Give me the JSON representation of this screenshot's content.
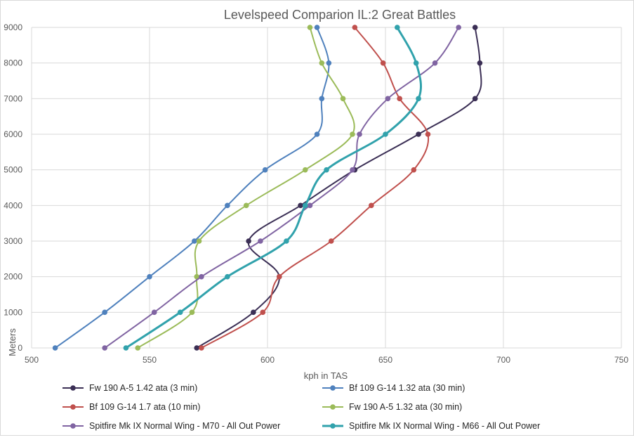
{
  "chart_data": {
    "type": "line",
    "title": "Levelspeed Comparion IL:2 Great Battles",
    "xlabel": "kph in TAS",
    "ylabel": "Meters",
    "xlim": [
      500,
      750
    ],
    "ylim": [
      0,
      9000
    ],
    "xticks": [
      500,
      550,
      600,
      650,
      700,
      750
    ],
    "yticks": [
      0,
      1000,
      2000,
      3000,
      4000,
      5000,
      6000,
      7000,
      8000,
      9000
    ],
    "grid": true,
    "legend_position": "bottom",
    "series": [
      {
        "name": "Fw 190 A-5 1.42 ata (3 min)",
        "color": "#3b2f55",
        "points": [
          [
            570,
            0
          ],
          [
            594,
            1000
          ],
          [
            605,
            2000
          ],
          [
            592,
            3000
          ],
          [
            614,
            4000
          ],
          [
            637,
            5000
          ],
          [
            664,
            6000
          ],
          [
            688,
            7000
          ],
          [
            690,
            8000
          ],
          [
            688,
            9000
          ]
        ]
      },
      {
        "name": "Bf 109 G-14 1.32 ata (30 min)",
        "color": "#4f81bd",
        "points": [
          [
            510,
            0
          ],
          [
            531,
            1000
          ],
          [
            550,
            2000
          ],
          [
            569,
            3000
          ],
          [
            583,
            4000
          ],
          [
            599,
            5000
          ],
          [
            621,
            6000
          ],
          [
            623,
            7000
          ],
          [
            626,
            8000
          ],
          [
            621,
            9000
          ]
        ]
      },
      {
        "name": "Bf 109 G-14 1.7 ata (10 min)",
        "color": "#c0504d",
        "points": [
          [
            572,
            0
          ],
          [
            598,
            1000
          ],
          [
            605,
            2000
          ],
          [
            627,
            3000
          ],
          [
            644,
            4000
          ],
          [
            662,
            5000
          ],
          [
            668,
            6000
          ],
          [
            656,
            7000
          ],
          [
            649,
            8000
          ],
          [
            637,
            9000
          ]
        ]
      },
      {
        "name": "Fw 190 A-5 1.32 ata (30 min)",
        "color": "#9bbb59",
        "points": [
          [
            545,
            0
          ],
          [
            568,
            1000
          ],
          [
            570,
            2000
          ],
          [
            571,
            3000
          ],
          [
            591,
            4000
          ],
          [
            616,
            5000
          ],
          [
            636,
            6000
          ],
          [
            632,
            7000
          ],
          [
            623,
            8000
          ],
          [
            618,
            9000
          ]
        ]
      },
      {
        "name": "Spitfire Mk IX Normal Wing - M70 - All Out Power",
        "color": "#8064a2",
        "points": [
          [
            531,
            0
          ],
          [
            552,
            1000
          ],
          [
            572,
            2000
          ],
          [
            597,
            3000
          ],
          [
            618,
            4000
          ],
          [
            636,
            5000
          ],
          [
            639,
            6000
          ],
          [
            651,
            7000
          ],
          [
            671,
            8000
          ],
          [
            681,
            9000
          ]
        ]
      },
      {
        "name": "Spitfire Mk IX Normal Wing - M66 - All Out Power",
        "color": "#31a2ac",
        "points": [
          [
            540,
            0
          ],
          [
            563,
            1000
          ],
          [
            583,
            2000
          ],
          [
            608,
            3000
          ],
          [
            616,
            4000
          ],
          [
            625,
            5000
          ],
          [
            650,
            6000
          ],
          [
            664,
            7000
          ],
          [
            663,
            8000
          ],
          [
            655,
            9000
          ]
        ]
      }
    ]
  }
}
